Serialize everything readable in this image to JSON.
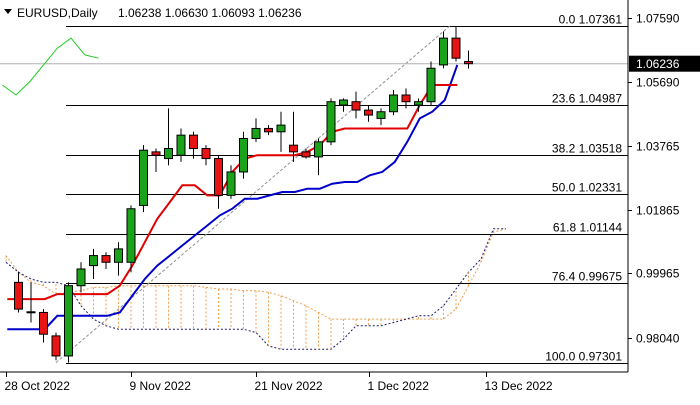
{
  "header": {
    "symbol": "EURUSD,Daily",
    "ohlc": "1.06238 1.06630 1.06093 1.06236"
  },
  "colors": {
    "bull": "#1aa31a",
    "bear": "#e81414",
    "kijun": "#e00000",
    "tenkan_slow": "#0000cc",
    "chikou": "#22cc22",
    "cloud": "#f0a050",
    "fib": "#000000",
    "trend": "#909090",
    "badge": "#000000"
  },
  "price_axis": {
    "ticks": [
      "1.07590",
      "1.05690",
      "1.03765",
      "1.01865",
      "0.99965",
      "0.98040"
    ],
    "current_price": "1.06236"
  },
  "time_axis": {
    "ticks": [
      "28 Oct 2022",
      "9 Nov 2022",
      "21 Nov 2022",
      "1 Dec 2022",
      "13 Dec 2022"
    ]
  },
  "chart_data": {
    "type": "candlestick",
    "symbol": "EURUSD",
    "timeframe": "Daily",
    "ylim": [
      0.9702,
      1.0814
    ],
    "fibonacci": [
      {
        "level": "0.0",
        "price": "1.07361"
      },
      {
        "level": "23.6",
        "price": "1.04987"
      },
      {
        "level": "38.2",
        "price": "1.03518"
      },
      {
        "level": "50.0",
        "price": "1.02331"
      },
      {
        "level": "61.8",
        "price": "1.01144"
      },
      {
        "level": "76.4",
        "price": "0.99675"
      },
      {
        "level": "100.0",
        "price": "0.97301"
      }
    ],
    "candles": [
      {
        "o": 0.997,
        "h": 1.0002,
        "l": 0.988,
        "c": 0.989
      },
      {
        "o": 0.988,
        "h": 0.997,
        "l": 0.985,
        "c": 0.9882
      },
      {
        "o": 0.988,
        "h": 0.989,
        "l": 0.979,
        "c": 0.9815
      },
      {
        "o": 0.981,
        "h": 0.982,
        "l": 0.9737,
        "c": 0.975
      },
      {
        "o": 0.975,
        "h": 0.997,
        "l": 0.973,
        "c": 0.996
      },
      {
        "o": 0.996,
        "h": 1.003,
        "l": 0.994,
        "c": 1.001
      },
      {
        "o": 1.002,
        "h": 1.007,
        "l": 0.998,
        "c": 1.005
      },
      {
        "o": 1.005,
        "h": 1.006,
        "l": 1.001,
        "c": 1.003
      },
      {
        "o": 1.003,
        "h": 1.009,
        "l": 0.999,
        "c": 1.007
      },
      {
        "o": 1.003,
        "h": 1.02,
        "l": 1.0,
        "c": 1.019
      },
      {
        "o": 1.02,
        "h": 1.038,
        "l": 1.018,
        "c": 1.0365
      },
      {
        "o": 1.036,
        "h": 1.037,
        "l": 1.03,
        "c": 1.035
      },
      {
        "o": 1.034,
        "h": 1.049,
        "l": 1.032,
        "c": 1.037
      },
      {
        "o": 1.035,
        "h": 1.043,
        "l": 1.033,
        "c": 1.041
      },
      {
        "o": 1.041,
        "h": 1.042,
        "l": 1.034,
        "c": 1.037
      },
      {
        "o": 1.037,
        "h": 1.038,
        "l": 1.032,
        "c": 1.034
      },
      {
        "o": 1.034,
        "h": 1.035,
        "l": 1.019,
        "c": 1.023
      },
      {
        "o": 1.023,
        "h": 1.032,
        "l": 1.022,
        "c": 1.03
      },
      {
        "o": 1.03,
        "h": 1.042,
        "l": 1.028,
        "c": 1.04
      },
      {
        "o": 1.04,
        "h": 1.046,
        "l": 1.039,
        "c": 1.043
      },
      {
        "o": 1.043,
        "h": 1.044,
        "l": 1.041,
        "c": 1.042
      },
      {
        "o": 1.042,
        "h": 1.048,
        "l": 1.036,
        "c": 1.044
      },
      {
        "o": 1.038,
        "h": 1.048,
        "l": 1.033,
        "c": 1.036
      },
      {
        "o": 1.036,
        "h": 1.037,
        "l": 1.034,
        "c": 1.0345
      },
      {
        "o": 1.0345,
        "h": 1.04,
        "l": 1.029,
        "c": 1.039
      },
      {
        "o": 1.039,
        "h": 1.052,
        "l": 1.038,
        "c": 1.051
      },
      {
        "o": 1.05,
        "h": 1.052,
        "l": 1.048,
        "c": 1.0515
      },
      {
        "o": 1.051,
        "h": 1.054,
        "l": 1.046,
        "c": 1.0485
      },
      {
        "o": 1.0485,
        "h": 1.05,
        "l": 1.045,
        "c": 1.047
      },
      {
        "o": 1.046,
        "h": 1.049,
        "l": 1.044,
        "c": 1.048
      },
      {
        "o": 1.048,
        "h": 1.0545,
        "l": 1.047,
        "c": 1.053
      },
      {
        "o": 1.053,
        "h": 1.055,
        "l": 1.049,
        "c": 1.051
      },
      {
        "o": 1.05,
        "h": 1.052,
        "l": 1.048,
        "c": 1.051
      },
      {
        "o": 1.051,
        "h": 1.063,
        "l": 1.05,
        "c": 1.061
      },
      {
        "o": 1.062,
        "h": 1.072,
        "l": 1.061,
        "c": 1.07
      },
      {
        "o": 1.07,
        "h": 1.0736,
        "l": 1.063,
        "c": 1.064
      },
      {
        "o": 1.063,
        "h": 1.0663,
        "l": 1.0609,
        "c": 1.06236
      }
    ],
    "kijun": [
      0.992,
      0.992,
      0.992,
      0.992,
      0.9935,
      0.9935,
      0.9935,
      0.9935,
      0.9935,
      0.996,
      1.002,
      1.009,
      1.016,
      1.021,
      1.026,
      1.026,
      1.023,
      1.023,
      1.03,
      1.034,
      1.035,
      1.035,
      1.035,
      1.035,
      1.036,
      1.038,
      1.042,
      1.043,
      1.043,
      1.043,
      1.043,
      1.043,
      1.043,
      1.05,
      1.056,
      1.056,
      1.056
    ],
    "slow_line": [
      0.983,
      0.983,
      0.983,
      0.983,
      0.987,
      0.987,
      0.987,
      0.987,
      0.987,
      0.988,
      0.993,
      0.998,
      1.002,
      1.005,
      1.008,
      1.011,
      1.014,
      1.017,
      1.019,
      1.022,
      1.022,
      1.023,
      1.024,
      1.024,
      1.025,
      1.025,
      1.0265,
      1.027,
      1.027,
      1.029,
      1.03,
      1.033,
      1.039,
      1.046,
      1.048,
      1.0515,
      1.062
    ],
    "chikou": [
      1.056,
      1.053,
      1.057,
      1.062,
      1.067,
      1.07,
      1.065,
      1.064
    ],
    "cloud_upper": [
      1.005,
      1.0,
      0.997,
      0.996,
      0.9935,
      0.994,
      0.9945,
      0.9955,
      0.9955,
      0.996,
      0.996,
      0.996,
      0.996,
      0.996,
      0.996,
      0.996,
      0.9955,
      0.995,
      0.995,
      0.9945,
      0.9945,
      0.994,
      0.993,
      0.9915,
      0.99,
      0.988,
      0.986,
      0.986,
      0.986,
      0.986,
      0.986,
      0.986,
      0.986,
      0.986,
      0.986,
      0.986,
      0.989,
      0.996,
      1.003,
      1.012,
      1.013
    ],
    "cloud_lower": [
      1.003,
      1.0,
      0.998,
      0.997,
      0.997,
      0.996,
      0.99,
      0.986,
      0.984,
      0.983,
      0.983,
      0.983,
      0.983,
      0.983,
      0.983,
      0.983,
      0.983,
      0.983,
      0.983,
      0.983,
      0.982,
      0.978,
      0.977,
      0.977,
      0.977,
      0.977,
      0.977,
      0.98,
      0.984,
      0.984,
      0.984,
      0.985,
      0.986,
      0.987,
      0.987,
      0.99,
      0.995,
      1.0,
      1.004,
      1.013,
      1.013
    ],
    "swing_low": 0.97301,
    "swing_high": 1.07361
  }
}
